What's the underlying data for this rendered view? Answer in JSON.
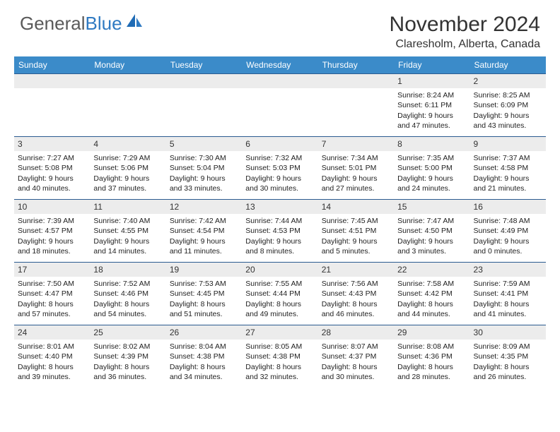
{
  "brand": {
    "name_part1": "General",
    "name_part2": "Blue",
    "color_general": "#5a5a5a",
    "color_blue": "#2f7ac2"
  },
  "header": {
    "month_title": "November 2024",
    "location": "Claresholm, Alberta, Canada"
  },
  "styling": {
    "header_bg": "#3b8bc9",
    "header_text": "#ffffff",
    "daynum_bg": "#ececec",
    "row_border": "#2b5b90",
    "body_text": "#222222",
    "weekday_fontsize": 12,
    "daynum_fontsize": 12,
    "cell_fontsize": 10.5
  },
  "weekdays": [
    "Sunday",
    "Monday",
    "Tuesday",
    "Wednesday",
    "Thursday",
    "Friday",
    "Saturday"
  ],
  "weeks": [
    [
      null,
      null,
      null,
      null,
      null,
      {
        "day": "1",
        "sunrise": "8:24 AM",
        "sunset": "6:11 PM",
        "daylight": "9 hours and 47 minutes."
      },
      {
        "day": "2",
        "sunrise": "8:25 AM",
        "sunset": "6:09 PM",
        "daylight": "9 hours and 43 minutes."
      }
    ],
    [
      {
        "day": "3",
        "sunrise": "7:27 AM",
        "sunset": "5:08 PM",
        "daylight": "9 hours and 40 minutes."
      },
      {
        "day": "4",
        "sunrise": "7:29 AM",
        "sunset": "5:06 PM",
        "daylight": "9 hours and 37 minutes."
      },
      {
        "day": "5",
        "sunrise": "7:30 AM",
        "sunset": "5:04 PM",
        "daylight": "9 hours and 33 minutes."
      },
      {
        "day": "6",
        "sunrise": "7:32 AM",
        "sunset": "5:03 PM",
        "daylight": "9 hours and 30 minutes."
      },
      {
        "day": "7",
        "sunrise": "7:34 AM",
        "sunset": "5:01 PM",
        "daylight": "9 hours and 27 minutes."
      },
      {
        "day": "8",
        "sunrise": "7:35 AM",
        "sunset": "5:00 PM",
        "daylight": "9 hours and 24 minutes."
      },
      {
        "day": "9",
        "sunrise": "7:37 AM",
        "sunset": "4:58 PM",
        "daylight": "9 hours and 21 minutes."
      }
    ],
    [
      {
        "day": "10",
        "sunrise": "7:39 AM",
        "sunset": "4:57 PM",
        "daylight": "9 hours and 18 minutes."
      },
      {
        "day": "11",
        "sunrise": "7:40 AM",
        "sunset": "4:55 PM",
        "daylight": "9 hours and 14 minutes."
      },
      {
        "day": "12",
        "sunrise": "7:42 AM",
        "sunset": "4:54 PM",
        "daylight": "9 hours and 11 minutes."
      },
      {
        "day": "13",
        "sunrise": "7:44 AM",
        "sunset": "4:53 PM",
        "daylight": "9 hours and 8 minutes."
      },
      {
        "day": "14",
        "sunrise": "7:45 AM",
        "sunset": "4:51 PM",
        "daylight": "9 hours and 5 minutes."
      },
      {
        "day": "15",
        "sunrise": "7:47 AM",
        "sunset": "4:50 PM",
        "daylight": "9 hours and 3 minutes."
      },
      {
        "day": "16",
        "sunrise": "7:48 AM",
        "sunset": "4:49 PM",
        "daylight": "9 hours and 0 minutes."
      }
    ],
    [
      {
        "day": "17",
        "sunrise": "7:50 AM",
        "sunset": "4:47 PM",
        "daylight": "8 hours and 57 minutes."
      },
      {
        "day": "18",
        "sunrise": "7:52 AM",
        "sunset": "4:46 PM",
        "daylight": "8 hours and 54 minutes."
      },
      {
        "day": "19",
        "sunrise": "7:53 AM",
        "sunset": "4:45 PM",
        "daylight": "8 hours and 51 minutes."
      },
      {
        "day": "20",
        "sunrise": "7:55 AM",
        "sunset": "4:44 PM",
        "daylight": "8 hours and 49 minutes."
      },
      {
        "day": "21",
        "sunrise": "7:56 AM",
        "sunset": "4:43 PM",
        "daylight": "8 hours and 46 minutes."
      },
      {
        "day": "22",
        "sunrise": "7:58 AM",
        "sunset": "4:42 PM",
        "daylight": "8 hours and 44 minutes."
      },
      {
        "day": "23",
        "sunrise": "7:59 AM",
        "sunset": "4:41 PM",
        "daylight": "8 hours and 41 minutes."
      }
    ],
    [
      {
        "day": "24",
        "sunrise": "8:01 AM",
        "sunset": "4:40 PM",
        "daylight": "8 hours and 39 minutes."
      },
      {
        "day": "25",
        "sunrise": "8:02 AM",
        "sunset": "4:39 PM",
        "daylight": "8 hours and 36 minutes."
      },
      {
        "day": "26",
        "sunrise": "8:04 AM",
        "sunset": "4:38 PM",
        "daylight": "8 hours and 34 minutes."
      },
      {
        "day": "27",
        "sunrise": "8:05 AM",
        "sunset": "4:38 PM",
        "daylight": "8 hours and 32 minutes."
      },
      {
        "day": "28",
        "sunrise": "8:07 AM",
        "sunset": "4:37 PM",
        "daylight": "8 hours and 30 minutes."
      },
      {
        "day": "29",
        "sunrise": "8:08 AM",
        "sunset": "4:36 PM",
        "daylight": "8 hours and 28 minutes."
      },
      {
        "day": "30",
        "sunrise": "8:09 AM",
        "sunset": "4:35 PM",
        "daylight": "8 hours and 26 minutes."
      }
    ]
  ],
  "labels": {
    "sunrise_prefix": "Sunrise: ",
    "sunset_prefix": "Sunset: ",
    "daylight_prefix": "Daylight: "
  }
}
